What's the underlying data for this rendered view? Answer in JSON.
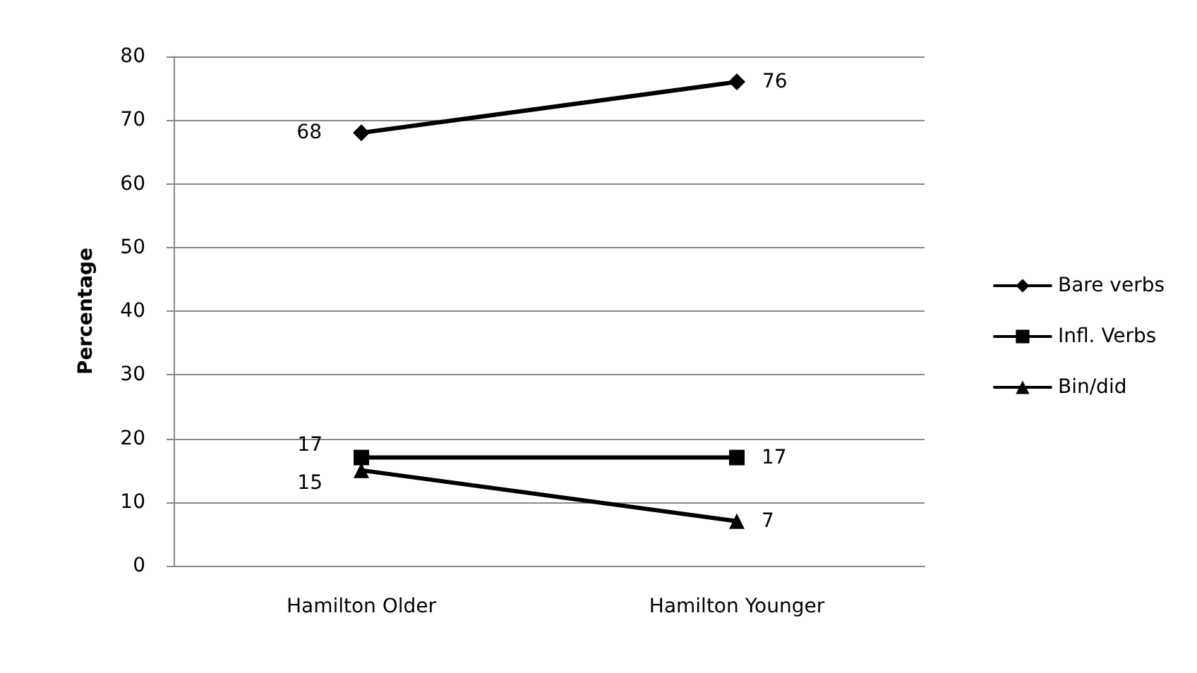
{
  "chart_data": {
    "type": "line",
    "ylabel": "Percentage",
    "categories": [
      "Hamilton Older",
      "Hamilton Younger"
    ],
    "series": [
      {
        "name": "Bare verbs",
        "color": "#000000",
        "marker": "diamond",
        "values": [
          68,
          76
        ]
      },
      {
        "name": "Infl. Verbs",
        "color": "#000000",
        "marker": "square",
        "values": [
          17,
          17
        ]
      },
      {
        "name": "Bin/did",
        "color": "#000000",
        "marker": "triangle",
        "values": [
          15,
          7
        ]
      }
    ],
    "ylim": [
      0,
      80
    ],
    "yticks": [
      0,
      10,
      20,
      30,
      40,
      50,
      60,
      70,
      80
    ],
    "grid": "y",
    "legend": "right",
    "data_labels": true,
    "line_style": "solid"
  }
}
